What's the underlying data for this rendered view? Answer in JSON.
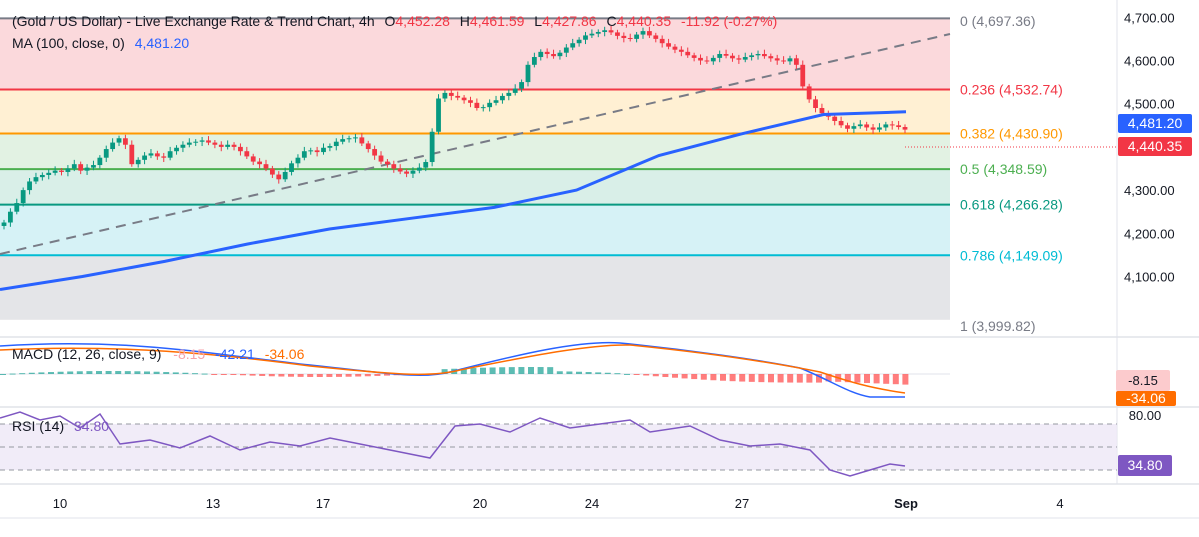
{
  "header": {
    "title": "(Gold / US Dollar) - Live Exchange Rate & Trend Chart, 4h",
    "open_label": "O",
    "open": "4,452.28",
    "high_label": "H",
    "high": "4,461.59",
    "low_label": "L",
    "low": "4,427.86",
    "close_label": "C",
    "close": "4,440.35",
    "change": "-11.92 (-0.27%)"
  },
  "ma_legend": {
    "label": "MA (100, close, 0)",
    "value": "4,481.20"
  },
  "macd_legend": {
    "label": "MACD (12, 26, close, 9)",
    "hist": "-8.15",
    "macd": "-42.21",
    "signal": "-34.06"
  },
  "rsi_legend": {
    "label": "RSI (14)",
    "value": "34.80"
  },
  "badges": {
    "ma": "4,481.20",
    "price": "4,440.35",
    "macd_hist": "-8.15",
    "macd_signal": "-34.06",
    "rsi_upper": "80.00",
    "rsi": "34.80"
  },
  "fib_labels": [
    {
      "text": "0 (4,697.36)",
      "price": 4697.36
    },
    {
      "text": "0.236 (4,532.74)",
      "price": 4532.74
    },
    {
      "text": "0.382 (4,430.90)",
      "price": 4430.9
    },
    {
      "text": "0.5 (4,348.59)",
      "price": 4348.59
    },
    {
      "text": "0.618 (4,266.28)",
      "price": 4266.28
    },
    {
      "text": "0.786 (4,149.09)",
      "price": 4149.09
    },
    {
      "text": "1 (3,999.82)",
      "price": 3999.82
    }
  ],
  "colors": {
    "bull": "#089981",
    "bear": "#f23645",
    "ma": "#2962ff",
    "macd_line": "#2962ff",
    "signal_line": "#ff6d00",
    "rsi": "#7e57c2",
    "fib_0": "#787b86",
    "fib_0236": "#f23645",
    "fib_0382": "#ff9800",
    "fib_05": "#4caf50",
    "fib_0618": "#089981",
    "fib_0786": "#00bcd4",
    "fib_1": "#787b86",
    "zone_0_0236": "#fbd9dc",
    "zone_0236_0382": "#fff0d3",
    "zone_0382_05": "#e2f2e3",
    "zone_05_0618": "#d9efe8",
    "zone_0618_0786": "#d6f2f6",
    "zone_0786_1": "#e4e5e8"
  },
  "chart_data": [
    {
      "type": "candlestick",
      "title": "(Gold / US Dollar) - Live Exchange Rate & Trend Chart, 4h",
      "x_tick_labels": [
        "10",
        "13",
        "17",
        "20",
        "24",
        "27",
        "Sep",
        "4"
      ],
      "y_tick_labels": [
        "4,100.00",
        "4,200.00",
        "4,300.00",
        "4,400.00",
        "4,500.00",
        "4,600.00",
        "4,700.00"
      ],
      "ylim": [
        3960,
        4740
      ],
      "closes": [
        4225,
        4250,
        4270,
        4300,
        4320,
        4330,
        4335,
        4340,
        4345,
        4342,
        4350,
        4360,
        4345,
        4352,
        4358,
        4375,
        4395,
        4410,
        4420,
        4405,
        4360,
        4370,
        4380,
        4385,
        4378,
        4375,
        4390,
        4398,
        4405,
        4410,
        4412,
        4415,
        4410,
        4405,
        4400,
        4405,
        4400,
        4390,
        4378,
        4366,
        4360,
        4350,
        4336,
        4325,
        4342,
        4362,
        4375,
        4390,
        4392,
        4388,
        4398,
        4402,
        4412,
        4418,
        4420,
        4422,
        4408,
        4395,
        4380,
        4366,
        4360,
        4350,
        4343,
        4338,
        4345,
        4352,
        4365,
        4435,
        4512,
        4525,
        4518,
        4514,
        4508,
        4502,
        4490,
        4492,
        4502,
        4508,
        4518,
        4525,
        4535,
        4550,
        4590,
        4608,
        4620,
        4615,
        4610,
        4618,
        4630,
        4640,
        4648,
        4658,
        4662,
        4666,
        4670,
        4665,
        4657,
        4652,
        4650,
        4660,
        4668,
        4658,
        4650,
        4640,
        4632,
        4625,
        4620,
        4612,
        4606,
        4600,
        4598,
        4606,
        4615,
        4611,
        4605,
        4602,
        4608,
        4612,
        4615,
        4610,
        4605,
        4600,
        4598,
        4605,
        4590,
        4540,
        4510,
        4490,
        4478,
        4470,
        4460,
        4450,
        4442,
        4448,
        4452,
        4445,
        4440,
        4445,
        4452,
        4450,
        4446,
        4440
      ],
      "series": [
        {
          "name": "MA (100, close, 0)",
          "values_approx": [
            4070,
            4100,
            4135,
            4175,
            4210,
            4235,
            4260,
            4300,
            4380,
            4430,
            4475,
            4481.2
          ]
        }
      ],
      "fibonacci": {
        "levels": [
          0,
          0.236,
          0.382,
          0.5,
          0.618,
          0.786,
          1
        ],
        "prices": [
          4697.36,
          4532.74,
          4430.9,
          4348.59,
          4266.28,
          4149.09,
          3999.82
        ]
      },
      "last": {
        "open": 4452.28,
        "high": 4461.59,
        "low": 4427.86,
        "close": 4440.35,
        "change": -11.92,
        "change_pct": -0.27
      }
    },
    {
      "type": "line",
      "title": "MACD (12, 26, close, 9)",
      "series": [
        {
          "name": "MACD",
          "last": -42.21
        },
        {
          "name": "Signal",
          "last": -34.06
        },
        {
          "name": "Histogram",
          "last": -8.15
        }
      ]
    },
    {
      "type": "line",
      "title": "RSI (14)",
      "ylim": [
        0,
        100
      ],
      "levels": [
        70,
        50,
        30
      ],
      "y_tick_labels": [
        "80.00"
      ],
      "series": [
        {
          "name": "RSI (14)",
          "last": 34.8
        }
      ]
    }
  ]
}
